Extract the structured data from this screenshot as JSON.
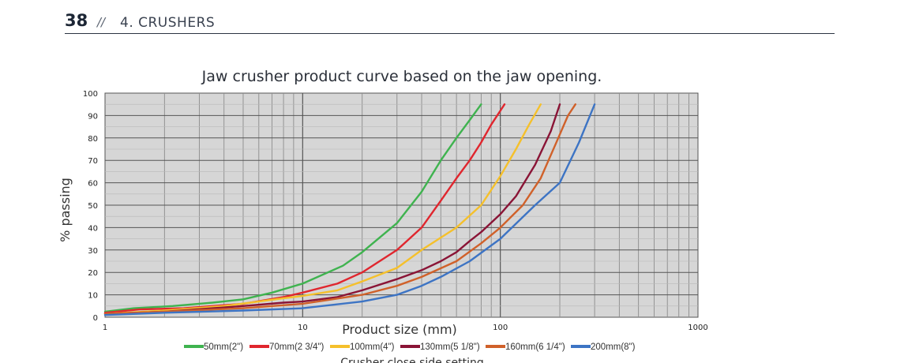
{
  "header": {
    "page_number": "38",
    "separator": "//",
    "section": "4. CRUSHERS"
  },
  "chart_data": {
    "type": "line",
    "title": "Jaw crusher product curve based on the jaw opening.",
    "xlabel": "Product size (mm)",
    "ylabel": "% passing",
    "legend_title": "Crusher close side setting",
    "x_scale": "log",
    "xlim": [
      1,
      1000
    ],
    "ylim": [
      0,
      100
    ],
    "x_ticks": [
      "1",
      "10",
      "100",
      "1000"
    ],
    "y_ticks": [
      "0",
      "10",
      "20",
      "30",
      "40",
      "50",
      "60",
      "70",
      "80",
      "90",
      "100"
    ],
    "grid": true,
    "legend_position": "bottom",
    "series": [
      {
        "name": "50mm(2\")",
        "color": "#3fb34f",
        "x": [
          1,
          1.4,
          2.2,
          3.5,
          5,
          7,
          10,
          16,
          20,
          30,
          40,
          50,
          60,
          70,
          80
        ],
        "y": [
          2.5,
          4,
          5,
          6.5,
          8,
          11,
          15,
          23,
          29,
          42,
          56,
          70,
          80,
          88,
          95
        ]
      },
      {
        "name": "70mm(2 3/4\")",
        "color": "#e0262e",
        "x": [
          1,
          1.5,
          2.5,
          5,
          8,
          10,
          15,
          20,
          30,
          40,
          50,
          60,
          70,
          80,
          90,
          105
        ],
        "y": [
          2,
          3.5,
          4,
          6,
          9,
          11,
          15,
          20,
          30,
          40,
          52,
          62,
          70,
          78,
          86,
          95
        ]
      },
      {
        "name": "100mm(4\")",
        "color": "#f5c02b",
        "x": [
          1,
          2,
          4,
          6,
          8,
          10,
          15,
          20,
          30,
          40,
          60,
          80,
          100,
          120,
          140,
          160
        ],
        "y": [
          1.5,
          3,
          5,
          7,
          8.5,
          9.5,
          12,
          16,
          22,
          30,
          40,
          50,
          63,
          75,
          86,
          95
        ]
      },
      {
        "name": "130mm(5 1/8\")",
        "color": "#8a1436",
        "x": [
          1,
          2,
          5,
          8,
          10,
          15,
          20,
          30,
          40,
          50,
          60,
          70,
          80,
          100,
          120,
          150,
          180,
          200
        ],
        "y": [
          1.5,
          2.5,
          5,
          6.5,
          7,
          9,
          12,
          17,
          21,
          25,
          29,
          34,
          38,
          46,
          54,
          68,
          83,
          95
        ]
      },
      {
        "name": "160mm(6 1/4\")",
        "color": "#d0612a",
        "x": [
          1,
          2,
          5,
          10,
          20,
          30,
          40,
          60,
          80,
          100,
          130,
          160,
          190,
          220,
          240
        ],
        "y": [
          1.5,
          2.5,
          4,
          6,
          10,
          14,
          18,
          25,
          33,
          40,
          50,
          62,
          77,
          90,
          95
        ]
      },
      {
        "name": "200mm(8\")",
        "color": "#3d74c4",
        "x": [
          1,
          2,
          5,
          10,
          20,
          30,
          40,
          50,
          70,
          100,
          150,
          200,
          250,
          300
        ],
        "y": [
          1,
          2,
          3,
          4,
          7,
          10,
          14,
          18,
          25,
          35,
          50,
          60,
          78,
          95
        ]
      }
    ]
  }
}
